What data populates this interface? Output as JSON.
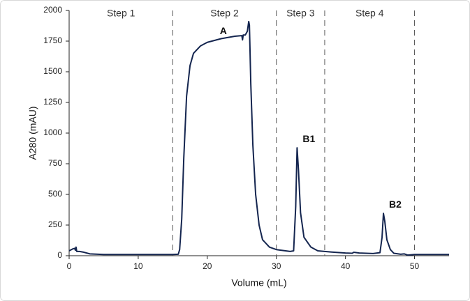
{
  "chart_data": {
    "type": "line",
    "xlabel": "Volume (mL)",
    "ylabel": "A280 (mAU)",
    "x": [
      0,
      0.5,
      0.8,
      0.9,
      1.0,
      1.1,
      1.5,
      2,
      3,
      5,
      10,
      15,
      15.8,
      16,
      16.3,
      16.6,
      17,
      17.5,
      18,
      19,
      20,
      22,
      24,
      25,
      25.1,
      25.2,
      25.5,
      25.8,
      26.0,
      26.1,
      26.3,
      26.6,
      27,
      27.5,
      28,
      29,
      30,
      32,
      32.5,
      32.8,
      33,
      33.2,
      33.5,
      34,
      35,
      36,
      38,
      40,
      41,
      41.2,
      42,
      44,
      45,
      45.3,
      45.5,
      45.7,
      46,
      46.5,
      47,
      48,
      48.5,
      49,
      50,
      55
    ],
    "series": [
      {
        "color": "#14254f",
        "values": [
          40,
          55,
          60,
          45,
          70,
          35,
          35,
          30,
          15,
          10,
          10,
          10,
          12,
          50,
          300,
          800,
          1300,
          1550,
          1650,
          1710,
          1740,
          1770,
          1790,
          1795,
          1760,
          1800,
          1800,
          1830,
          1910,
          1880,
          1400,
          900,
          500,
          250,
          130,
          70,
          50,
          35,
          40,
          400,
          880,
          700,
          350,
          150,
          70,
          40,
          30,
          22,
          20,
          28,
          22,
          18,
          25,
          150,
          345,
          280,
          130,
          50,
          20,
          12,
          15,
          5,
          10,
          10
        ]
      }
    ],
    "xlim": [
      0,
      55
    ],
    "xticks": [
      0,
      10,
      20,
      30,
      40,
      50
    ],
    "ylim": [
      0,
      2000
    ],
    "yticks": [
      0,
      250,
      500,
      750,
      1000,
      1250,
      1500,
      1750,
      2000
    ],
    "regions": [
      {
        "label": "Step 1",
        "start": 0,
        "end": 15
      },
      {
        "label": "Step 2",
        "start": 15,
        "end": 30
      },
      {
        "label": "Step 3",
        "start": 30,
        "end": 37
      },
      {
        "label": "Step 4",
        "start": 37,
        "end": 50
      }
    ],
    "peaks": [
      {
        "label": "A",
        "x": 21,
        "y": 1760
      },
      {
        "label": "B1",
        "x": 33,
        "y": 880
      },
      {
        "label": "B2",
        "x": 45.5,
        "y": 345
      }
    ]
  }
}
